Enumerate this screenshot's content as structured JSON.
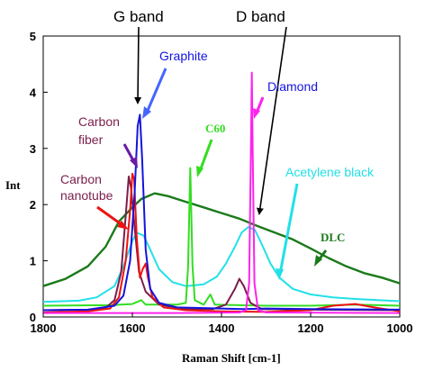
{
  "chart_data": {
    "type": "line",
    "title": "",
    "xlabel": "Raman Shift [cm-1]",
    "ylabel": "Int",
    "xlim": [
      1800,
      1000
    ],
    "ylim": [
      0,
      5
    ],
    "x_reversed": true,
    "x_ticks": [
      "1800",
      "1600",
      "1400",
      "1200",
      "1000"
    ],
    "y_ticks": [
      "0",
      "1",
      "2",
      "3",
      "4",
      "5"
    ],
    "band_labels": [
      {
        "text": "G band",
        "x": 1585
      },
      {
        "text": "D band",
        "x": 1332
      }
    ],
    "series": [
      {
        "name": "DLC",
        "color": "#1a7a1a",
        "points": [
          [
            1800,
            0.55
          ],
          [
            1750,
            0.68
          ],
          [
            1700,
            0.9
          ],
          [
            1660,
            1.25
          ],
          [
            1630,
            1.7
          ],
          [
            1600,
            1.95
          ],
          [
            1580,
            2.1
          ],
          [
            1550,
            2.2
          ],
          [
            1520,
            2.15
          ],
          [
            1480,
            2.05
          ],
          [
            1440,
            1.95
          ],
          [
            1400,
            1.85
          ],
          [
            1360,
            1.75
          ],
          [
            1320,
            1.62
          ],
          [
            1280,
            1.5
          ],
          [
            1240,
            1.38
          ],
          [
            1200,
            1.22
          ],
          [
            1160,
            1.05
          ],
          [
            1120,
            0.9
          ],
          [
            1080,
            0.78
          ],
          [
            1040,
            0.7
          ],
          [
            1000,
            0.6
          ]
        ]
      },
      {
        "name": "Acetylene black",
        "color": "#22e0e8",
        "points": [
          [
            1800,
            0.27
          ],
          [
            1720,
            0.29
          ],
          [
            1680,
            0.35
          ],
          [
            1640,
            0.55
          ],
          [
            1620,
            0.9
          ],
          [
            1600,
            1.35
          ],
          [
            1590,
            1.5
          ],
          [
            1575,
            1.45
          ],
          [
            1560,
            1.2
          ],
          [
            1540,
            0.85
          ],
          [
            1510,
            0.62
          ],
          [
            1480,
            0.55
          ],
          [
            1440,
            0.58
          ],
          [
            1410,
            0.72
          ],
          [
            1390,
            0.95
          ],
          [
            1370,
            1.25
          ],
          [
            1355,
            1.5
          ],
          [
            1340,
            1.6
          ],
          [
            1325,
            1.55
          ],
          [
            1310,
            1.3
          ],
          [
            1290,
            0.95
          ],
          [
            1270,
            0.7
          ],
          [
            1240,
            0.5
          ],
          [
            1200,
            0.4
          ],
          [
            1150,
            0.35
          ],
          [
            1100,
            0.32
          ],
          [
            1050,
            0.3
          ],
          [
            1000,
            0.28
          ]
        ]
      },
      {
        "name": "C60",
        "color": "#33dd22",
        "points": [
          [
            1800,
            0.2
          ],
          [
            1650,
            0.21
          ],
          [
            1600,
            0.23
          ],
          [
            1580,
            0.3
          ],
          [
            1570,
            0.22
          ],
          [
            1500,
            0.22
          ],
          [
            1480,
            0.25
          ],
          [
            1475,
            0.9
          ],
          [
            1470,
            2.65
          ],
          [
            1465,
            0.9
          ],
          [
            1460,
            0.3
          ],
          [
            1440,
            0.22
          ],
          [
            1425,
            0.4
          ],
          [
            1415,
            0.22
          ],
          [
            1300,
            0.2
          ],
          [
            1200,
            0.2
          ],
          [
            1100,
            0.22
          ],
          [
            1000,
            0.2
          ]
        ]
      },
      {
        "name": "Carbon fiber",
        "color": "#7a1e4a",
        "points": [
          [
            1800,
            0.12
          ],
          [
            1700,
            0.13
          ],
          [
            1660,
            0.16
          ],
          [
            1640,
            0.3
          ],
          [
            1625,
            0.8
          ],
          [
            1615,
            1.8
          ],
          [
            1608,
            2.5
          ],
          [
            1603,
            2.3
          ],
          [
            1595,
            1.6
          ],
          [
            1585,
            0.8
          ],
          [
            1570,
            0.45
          ],
          [
            1540,
            0.22
          ],
          [
            1480,
            0.14
          ],
          [
            1420,
            0.14
          ],
          [
            1390,
            0.22
          ],
          [
            1370,
            0.5
          ],
          [
            1360,
            0.68
          ],
          [
            1350,
            0.55
          ],
          [
            1335,
            0.25
          ],
          [
            1310,
            0.14
          ],
          [
            1200,
            0.13
          ],
          [
            1000,
            0.12
          ]
        ]
      },
      {
        "name": "Carbon nanotube",
        "color": "#ee1111",
        "points": [
          [
            1800,
            0.08
          ],
          [
            1700,
            0.1
          ],
          [
            1650,
            0.15
          ],
          [
            1630,
            0.35
          ],
          [
            1615,
            1.0
          ],
          [
            1605,
            1.9
          ],
          [
            1600,
            2.55
          ],
          [
            1596,
            2.45
          ],
          [
            1590,
            1.4
          ],
          [
            1583,
            0.7
          ],
          [
            1577,
            0.85
          ],
          [
            1570,
            0.95
          ],
          [
            1565,
            0.7
          ],
          [
            1555,
            0.35
          ],
          [
            1530,
            0.17
          ],
          [
            1480,
            0.12
          ],
          [
            1400,
            0.1
          ],
          [
            1300,
            0.09
          ],
          [
            1200,
            0.12
          ],
          [
            1150,
            0.2
          ],
          [
            1100,
            0.23
          ],
          [
            1050,
            0.16
          ],
          [
            1000,
            0.1
          ]
        ]
      },
      {
        "name": "Graphite",
        "color": "#1414dd",
        "points": [
          [
            1800,
            0.12
          ],
          [
            1700,
            0.13
          ],
          [
            1640,
            0.2
          ],
          [
            1620,
            0.38
          ],
          [
            1605,
            1.0
          ],
          [
            1595,
            2.2
          ],
          [
            1588,
            3.4
          ],
          [
            1583,
            3.6
          ],
          [
            1578,
            2.8
          ],
          [
            1570,
            1.2
          ],
          [
            1560,
            0.5
          ],
          [
            1540,
            0.25
          ],
          [
            1500,
            0.17
          ],
          [
            1400,
            0.15
          ],
          [
            1350,
            0.14
          ],
          [
            1300,
            0.15
          ],
          [
            1200,
            0.14
          ],
          [
            1000,
            0.13
          ]
        ]
      },
      {
        "name": "Diamond",
        "color": "#ff22ee",
        "points": [
          [
            1800,
            0.07
          ],
          [
            1500,
            0.07
          ],
          [
            1360,
            0.08
          ],
          [
            1345,
            0.12
          ],
          [
            1338,
            0.6
          ],
          [
            1334,
            3.0
          ],
          [
            1332,
            4.35
          ],
          [
            1330,
            3.0
          ],
          [
            1326,
            0.6
          ],
          [
            1318,
            0.12
          ],
          [
            1300,
            0.08
          ],
          [
            1000,
            0.07
          ]
        ]
      }
    ],
    "annotations": [
      {
        "text": "Graphite",
        "series": "Graphite",
        "color": "#1414dd"
      },
      {
        "text": "Diamond",
        "series": "Diamond",
        "color": "#1414dd"
      },
      {
        "text": "C60",
        "series": "C60",
        "color": "#33dd22"
      },
      {
        "text": "Acetylene black",
        "series": "Acetylene black",
        "color": "#22e0e8"
      },
      {
        "text": "DLC",
        "series": "DLC",
        "color": "#1a7a1a"
      },
      {
        "text": "Carbon",
        "text2": "fiber",
        "series": "Carbon fiber",
        "color": "#7a1e4a"
      },
      {
        "text": "Carbon",
        "text2": "nanotube",
        "series": "Carbon nanotube",
        "color": "#7a1e4a"
      }
    ],
    "grid": false,
    "legend": "none"
  }
}
